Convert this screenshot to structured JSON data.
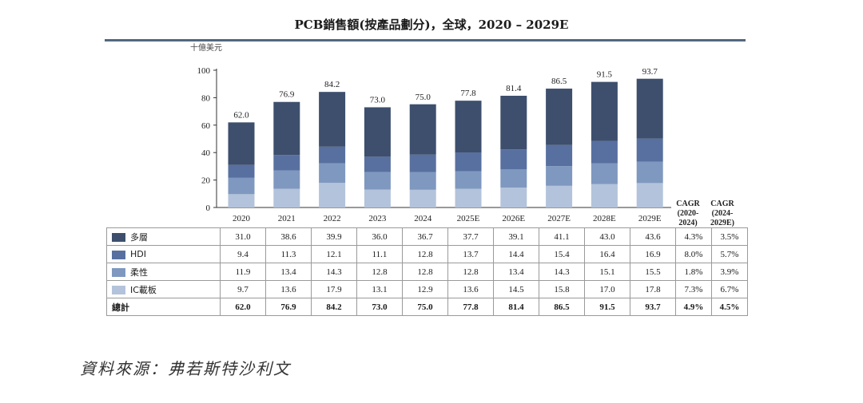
{
  "title": "PCB銷售額(按產品劃分)，全球，2020 – 2029E",
  "source": "資料來源：弗若斯特沙利文",
  "colors": {
    "multilayer": "#3d4f6d",
    "hdi": "#5870a0",
    "flexible": "#7f98bf",
    "ic_substrate": "#b3c3db",
    "rule": "#53677f"
  },
  "chart_data": {
    "type": "bar",
    "stacked": true,
    "title": "PCB銷售額(按產品劃分)，全球，2020 – 2029E",
    "unit": "十億美元",
    "ylim": [
      0,
      100
    ],
    "yticks": [
      "0",
      "20",
      "40",
      "60",
      "80",
      "100"
    ],
    "categories": [
      "2020",
      "2021",
      "2022",
      "2023",
      "2024",
      "2025E",
      "2026E",
      "2027E",
      "2028E",
      "2029E"
    ],
    "series": [
      {
        "name": "IC載板",
        "values": [
          9.7,
          13.6,
          17.9,
          13.1,
          12.9,
          13.6,
          14.5,
          15.8,
          17.0,
          17.8
        ],
        "cagr": [
          "7.3%",
          "6.7%"
        ]
      },
      {
        "name": "柔性",
        "values": [
          11.9,
          13.4,
          14.3,
          12.8,
          12.8,
          12.8,
          13.4,
          14.3,
          15.1,
          15.5
        ],
        "cagr": [
          "1.8%",
          "3.9%"
        ]
      },
      {
        "name": "HDI",
        "values": [
          9.4,
          11.3,
          12.1,
          11.1,
          12.8,
          13.7,
          14.4,
          15.4,
          16.4,
          16.9
        ],
        "cagr": [
          "8.0%",
          "5.7%"
        ]
      },
      {
        "name": "多層",
        "values": [
          31.0,
          38.6,
          39.9,
          36.0,
          36.7,
          37.7,
          39.1,
          41.1,
          43.0,
          43.6
        ],
        "cagr": [
          "4.3%",
          "3.5%"
        ]
      }
    ],
    "totals": [
      "62.0",
      "76.9",
      "84.2",
      "73.0",
      "75.0",
      "77.8",
      "81.4",
      "86.5",
      "91.5",
      "93.7"
    ],
    "total_label": "總計",
    "total_cagr": [
      "4.9%",
      "4.5%"
    ],
    "cagr_headers": [
      [
        "CAGR",
        "(2020-",
        "2024)"
      ],
      [
        "CAGR",
        "(2024-",
        "2029E)"
      ]
    ]
  },
  "table": {
    "rows": [
      {
        "label": "多層",
        "values": [
          "31.0",
          "38.6",
          "39.9",
          "36.0",
          "36.7",
          "37.7",
          "39.1",
          "41.1",
          "43.0",
          "43.6"
        ],
        "cagr": [
          "4.3%",
          "3.5%"
        ]
      },
      {
        "label": "HDI",
        "values": [
          "9.4",
          "11.3",
          "12.1",
          "11.1",
          "12.8",
          "13.7",
          "14.4",
          "15.4",
          "16.4",
          "16.9"
        ],
        "cagr": [
          "8.0%",
          "5.7%"
        ]
      },
      {
        "label": "柔性",
        "values": [
          "11.9",
          "13.4",
          "14.3",
          "12.8",
          "12.8",
          "12.8",
          "13.4",
          "14.3",
          "15.1",
          "15.5"
        ],
        "cagr": [
          "1.8%",
          "3.9%"
        ]
      },
      {
        "label": "IC載板",
        "values": [
          "9.7",
          "13.6",
          "17.9",
          "13.1",
          "12.9",
          "13.6",
          "14.5",
          "15.8",
          "17.0",
          "17.8"
        ],
        "cagr": [
          "7.3%",
          "6.7%"
        ]
      }
    ],
    "total": {
      "label": "總計",
      "values": [
        "62.0",
        "76.9",
        "84.2",
        "73.0",
        "75.0",
        "77.8",
        "81.4",
        "86.5",
        "91.5",
        "93.7"
      ],
      "cagr": [
        "4.9%",
        "4.5%"
      ]
    }
  }
}
